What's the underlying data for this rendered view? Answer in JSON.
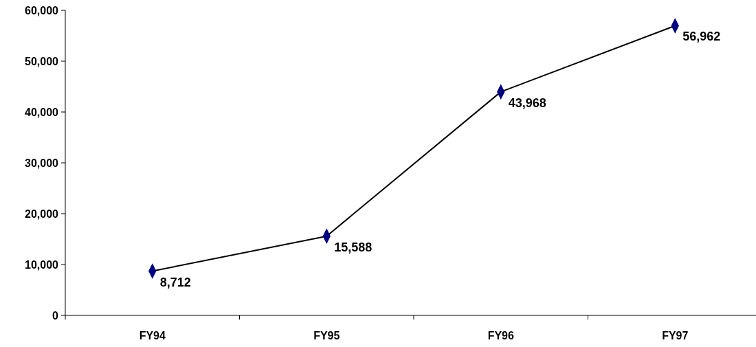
{
  "chart_data": {
    "type": "line",
    "categories": [
      "FY94",
      "FY95",
      "FY96",
      "FY97"
    ],
    "series": [
      {
        "color": "#000080",
        "values": [
          8712,
          15588,
          43968,
          56962
        ],
        "value_labels": [
          "8,712",
          "15,588",
          "43,968",
          "56,962"
        ]
      }
    ],
    "ylim": [
      0,
      60000
    ],
    "yticks": [
      {
        "value": 0,
        "label": "0"
      },
      {
        "value": 10000,
        "label": "10,000"
      },
      {
        "value": 20000,
        "label": "20,000"
      },
      {
        "value": 30000,
        "label": "30,000"
      },
      {
        "value": 40000,
        "label": "40,000"
      },
      {
        "value": 50000,
        "label": "50,000"
      },
      {
        "value": 60000,
        "label": "60,000"
      }
    ],
    "marker": "diamond",
    "line_style": "solid",
    "grid": false
  }
}
